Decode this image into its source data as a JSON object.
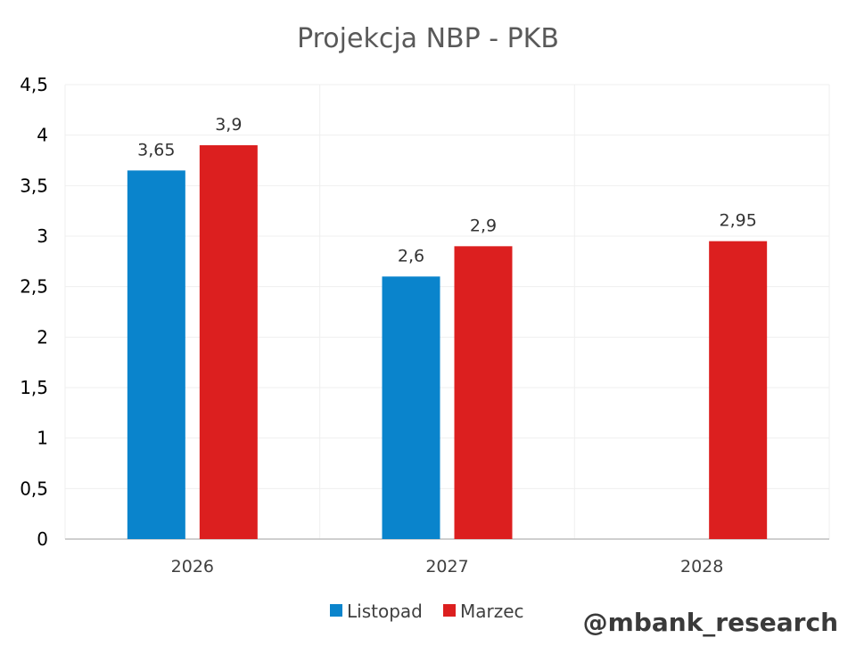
{
  "chart_data": {
    "type": "bar",
    "title": "Projekcja NBP - PKB",
    "xlabel": "",
    "ylabel": "",
    "categories": [
      "2026",
      "2027",
      "2028"
    ],
    "series": [
      {
        "name": "Listopad",
        "color": "#0a84cc",
        "values": [
          3.65,
          2.6,
          null
        ],
        "labels": [
          "3,65",
          "2,6",
          ""
        ]
      },
      {
        "name": "Marzec",
        "color": "#dc1f1f",
        "values": [
          3.9,
          2.9,
          2.95
        ],
        "labels": [
          "3,9",
          "2,9",
          "2,95"
        ]
      }
    ],
    "ylim": [
      0,
      4.5
    ],
    "yticks": [
      0,
      0.5,
      1,
      1.5,
      2,
      2.5,
      3,
      3.5,
      4,
      4.5
    ],
    "ytick_labels": [
      "0",
      "0,5",
      "1",
      "1,5",
      "2",
      "2,5",
      "3",
      "3,5",
      "4",
      "4,5"
    ],
    "grid": true,
    "legend_position": "bottom"
  },
  "watermark": "@mbank_research"
}
